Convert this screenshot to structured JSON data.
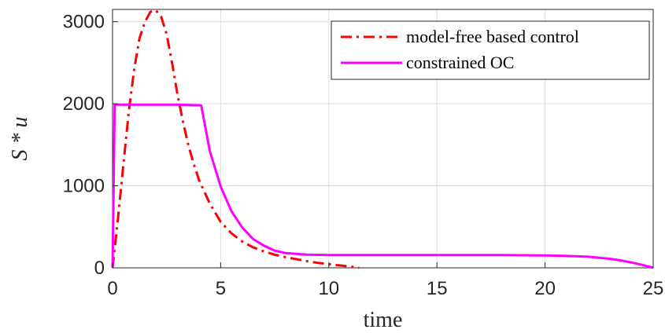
{
  "chart_data": {
    "type": "line",
    "title": "",
    "xlabel": "time",
    "ylabel": "S * u",
    "xlim": [
      0,
      25
    ],
    "ylim": [
      0,
      3150
    ],
    "xticks": [
      0,
      5,
      10,
      15,
      20,
      25
    ],
    "yticks": [
      0,
      1000,
      2000,
      3000
    ],
    "xtick_labels": [
      "0",
      "5",
      "10",
      "15",
      "20",
      "25"
    ],
    "ytick_labels": [
      "0",
      "1000",
      "2000",
      "3000"
    ],
    "grid": true,
    "legend_position": "top-right",
    "series": [
      {
        "name": "model-free based control",
        "color": "#ff0000",
        "style": "dash-dot",
        "x": [
          0,
          0.25,
          0.5,
          0.75,
          1.0,
          1.25,
          1.5,
          1.75,
          2.0,
          2.25,
          2.5,
          2.75,
          3.0,
          3.25,
          3.5,
          3.75,
          4.0,
          4.5,
          5.0,
          5.5,
          6.0,
          6.5,
          7.0,
          7.5,
          8.0,
          8.5,
          9.0,
          9.5,
          10.0,
          10.5,
          11.0,
          11.4
        ],
        "y": [
          0,
          600,
          1250,
          1900,
          2420,
          2800,
          3000,
          3120,
          3140,
          3060,
          2850,
          2500,
          2120,
          1790,
          1500,
          1270,
          1070,
          780,
          560,
          420,
          320,
          250,
          200,
          160,
          130,
          105,
          80,
          60,
          45,
          30,
          15,
          0
        ]
      },
      {
        "name": "constrained OC",
        "color": "#ff00ff",
        "style": "solid",
        "x": [
          0,
          0.1,
          0.2,
          1,
          2,
          3,
          4.1,
          4.5,
          5.0,
          5.5,
          6.0,
          6.5,
          7.0,
          7.5,
          8.0,
          9.0,
          10,
          12,
          15,
          18,
          20,
          21,
          22,
          23,
          23.5,
          24,
          24.5,
          25
        ],
        "y": [
          0,
          1990,
          1990,
          1990,
          1990,
          1990,
          1980,
          1420,
          990,
          690,
          490,
          350,
          270,
          210,
          180,
          160,
          155,
          155,
          155,
          155,
          150,
          145,
          135,
          110,
          90,
          65,
          35,
          0
        ]
      }
    ]
  }
}
